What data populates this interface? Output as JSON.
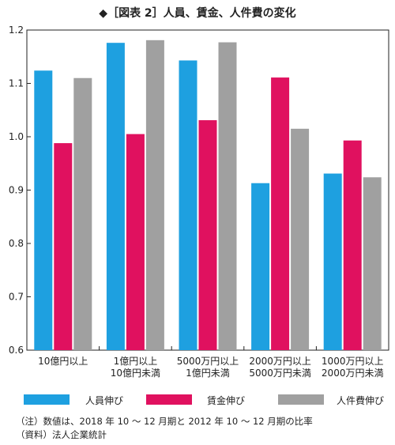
{
  "chart_data": {
    "type": "bar",
    "title": "◆［図表 2］人員、賃金、人件費の変化",
    "categories": [
      [
        "10億円以上"
      ],
      [
        "1億円以上",
        "10億円未満"
      ],
      [
        "5000万円以上",
        "1億円未満"
      ],
      [
        "2000万円以上",
        "5000万円未満"
      ],
      [
        "1000万円以上",
        "2000万円未満"
      ]
    ],
    "series": [
      {
        "name": "人員伸び",
        "color": "#1ea0e0",
        "values": [
          1.124,
          1.176,
          1.143,
          0.913,
          0.931
        ]
      },
      {
        "name": "賃金伸び",
        "color": "#e0115f",
        "values": [
          0.988,
          1.005,
          1.031,
          1.111,
          0.993
        ]
      },
      {
        "name": "人件費伸び",
        "color": "#a0a0a0",
        "values": [
          1.11,
          1.181,
          1.177,
          1.015,
          0.924
        ]
      }
    ],
    "ylim": [
      0.6,
      1.2
    ],
    "yticks": [
      "0.6",
      "0.7",
      "0.8",
      "0.9",
      "1.0",
      "1.1",
      "1.2"
    ],
    "grid": false,
    "legend_position": "bottom"
  },
  "notes": {
    "note1": "（注）数値は、2018 年 10 ～ 12 月期と 2012 年 10 ～ 12 月期の比率",
    "note2": "（資料）法人企業統計"
  }
}
